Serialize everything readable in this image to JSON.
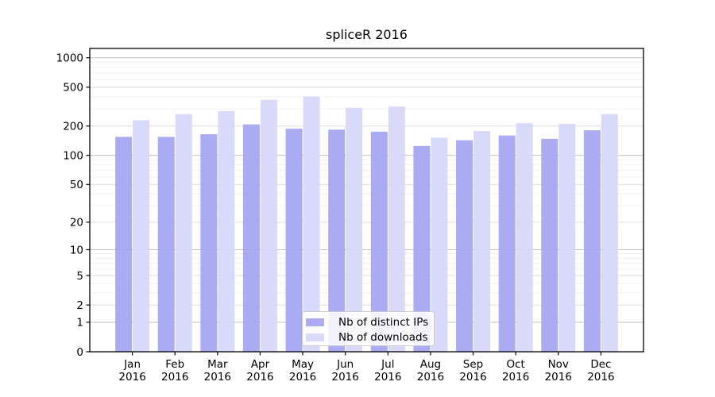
{
  "title": "spliceR 2016",
  "colors": {
    "distinct_ips": "#a5a5f2",
    "downloads": "#d6d6fa",
    "grid_major": "#c0c0c0",
    "grid_mid": "#dcdcdc",
    "grid_minor": "#f0f0f0",
    "axis": "#000000",
    "legend_border": "#cbcbcb",
    "background": "#ffffff"
  },
  "legend": {
    "items": [
      {
        "label": "Nb of distinct IPs",
        "series": "distinct_ips"
      },
      {
        "label": "Nb of downloads",
        "series": "downloads"
      }
    ]
  },
  "axes": {
    "y_tick_labels": [
      "0",
      "1",
      "2",
      "5",
      "10",
      "20",
      "50",
      "100",
      "200",
      "500",
      "1000"
    ],
    "x_tick_labels_line1": [
      "Jan",
      "Feb",
      "Mar",
      "Apr",
      "May",
      "Jun",
      "Jul",
      "Aug",
      "Sep",
      "Oct",
      "Nov",
      "Dec"
    ],
    "x_tick_labels_line2": "2016"
  },
  "chart_data": {
    "type": "bar",
    "title": "spliceR 2016",
    "categories": [
      "Jan 2016",
      "Feb 2016",
      "Mar 2016",
      "Apr 2016",
      "May 2016",
      "Jun 2016",
      "Jul 2016",
      "Aug 2016",
      "Sep 2016",
      "Oct 2016",
      "Nov 2016",
      "Dec 2016"
    ],
    "series": [
      {
        "name": "Nb of distinct IPs",
        "values": [
          155,
          155,
          165,
          208,
          188,
          184,
          175,
          125,
          143,
          160,
          148,
          181
        ]
      },
      {
        "name": "Nb of downloads",
        "values": [
          230,
          265,
          285,
          372,
          400,
          308,
          317,
          152,
          178,
          214,
          211,
          265
        ]
      }
    ],
    "yscale": "log1p",
    "yticks": [
      0,
      1,
      2,
      5,
      10,
      20,
      50,
      100,
      200,
      500,
      1000
    ],
    "ylim": [
      0,
      1250
    ],
    "xlabel": "",
    "ylabel": "",
    "grid": true,
    "legend_position": "lower center"
  }
}
